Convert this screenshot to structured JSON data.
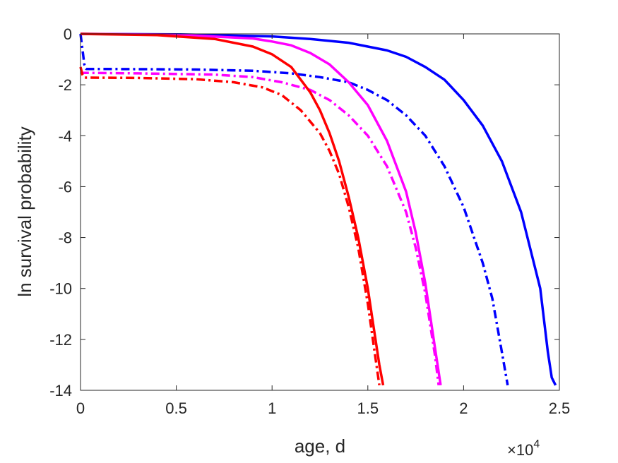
{
  "chart_data": {
    "type": "line",
    "title": "",
    "xlabel": "age, d",
    "ylabel": "ln survival probability",
    "x_exponent_label": "×10",
    "x_exponent_power": "4",
    "xlim": [
      0,
      25000
    ],
    "ylim": [
      -14,
      0
    ],
    "xticks": [
      0,
      5000,
      10000,
      15000,
      20000,
      25000
    ],
    "xtick_labels": [
      "0",
      "0.5",
      "1",
      "1.5",
      "2",
      "2.5"
    ],
    "yticks": [
      0,
      -2,
      -4,
      -6,
      -8,
      -10,
      -12,
      -14
    ],
    "ytick_labels": [
      "0",
      "-2",
      "-4",
      "-6",
      "-8",
      "-10",
      "-12",
      "-14"
    ],
    "grid": false,
    "box": true,
    "series": [
      {
        "color": "#0000ff",
        "style": "solid",
        "x": [
          0,
          5000,
          10000,
          12000,
          14000,
          16000,
          17000,
          18000,
          19000,
          20000,
          21000,
          22000,
          23000,
          24000,
          24400,
          24600,
          24800
        ],
        "y": [
          0,
          -0.02,
          -0.1,
          -0.2,
          -0.35,
          -0.65,
          -0.9,
          -1.3,
          -1.8,
          -2.6,
          -3.6,
          -5.0,
          -7.0,
          -10.0,
          -12.5,
          -13.5,
          -13.8
        ]
      },
      {
        "color": "#0000ff",
        "style": "dashdot",
        "x": [
          0,
          100,
          200,
          300,
          2000,
          6000,
          9000,
          11000,
          12500,
          14000,
          15000,
          16000,
          17000,
          18000,
          19000,
          20000,
          21000,
          21500,
          22000,
          22300
        ],
        "y": [
          0,
          -0.6,
          -1.2,
          -1.38,
          -1.38,
          -1.4,
          -1.45,
          -1.55,
          -1.7,
          -1.9,
          -2.2,
          -2.6,
          -3.2,
          -4.0,
          -5.2,
          -6.8,
          -9.0,
          -10.4,
          -12.5,
          -13.8
        ]
      },
      {
        "color": "#ff00ff",
        "style": "solid",
        "x": [
          0,
          5000,
          9000,
          10000,
          11000,
          12000,
          13000,
          14000,
          15000,
          16000,
          17000,
          17500,
          18000,
          18500,
          18800
        ],
        "y": [
          0,
          -0.03,
          -0.18,
          -0.3,
          -0.45,
          -0.75,
          -1.2,
          -1.9,
          -2.8,
          -4.2,
          -6.2,
          -7.8,
          -9.8,
          -12.3,
          -13.8
        ]
      },
      {
        "color": "#ff00ff",
        "style": "dashdot",
        "x": [
          0,
          100,
          3000,
          7000,
          9000,
          10500,
          12000,
          13000,
          14000,
          15000,
          16000,
          17000,
          17500,
          18000,
          18500,
          18700
        ],
        "y": [
          -1.5,
          -1.53,
          -1.55,
          -1.6,
          -1.7,
          -1.9,
          -2.2,
          -2.6,
          -3.2,
          -4.0,
          -5.2,
          -7.0,
          -8.4,
          -10.2,
          -12.6,
          -13.8
        ]
      },
      {
        "color": "#ff0000",
        "style": "solid",
        "x": [
          0,
          4000,
          7000,
          9000,
          10000,
          11000,
          12000,
          12500,
          13000,
          13500,
          14000,
          14500,
          15000,
          15300,
          15600,
          15800
        ],
        "y": [
          0,
          -0.05,
          -0.2,
          -0.5,
          -0.8,
          -1.3,
          -2.3,
          -3.0,
          -3.9,
          -5.0,
          -6.4,
          -8.0,
          -10.0,
          -11.5,
          -13.0,
          -13.8
        ]
      },
      {
        "color": "#ff0000",
        "style": "dashdot",
        "x": [
          0,
          100,
          200,
          3000,
          6000,
          8000,
          9500,
          10500,
          11500,
          12500,
          13000,
          13500,
          14000,
          14500,
          15000,
          15300,
          15600
        ],
        "y": [
          -1.3,
          -1.6,
          -1.72,
          -1.73,
          -1.78,
          -1.9,
          -2.1,
          -2.4,
          -3.0,
          -3.9,
          -4.6,
          -5.5,
          -6.8,
          -8.4,
          -10.6,
          -12.2,
          -13.8
        ]
      }
    ]
  }
}
